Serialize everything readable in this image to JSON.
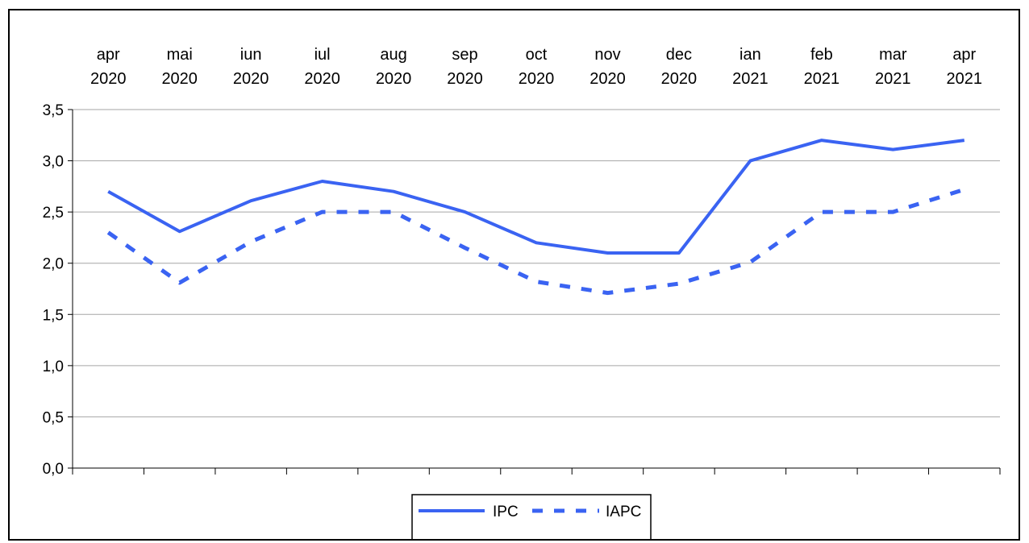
{
  "chart_data": {
    "type": "line",
    "categories": [
      [
        "apr",
        "2020"
      ],
      [
        "mai",
        "2020"
      ],
      [
        "iun",
        "2020"
      ],
      [
        "iul",
        "2020"
      ],
      [
        "aug",
        "2020"
      ],
      [
        "sep",
        "2020"
      ],
      [
        "oct",
        "2020"
      ],
      [
        "nov",
        "2020"
      ],
      [
        "dec",
        "2020"
      ],
      [
        "ian",
        "2021"
      ],
      [
        "feb",
        "2021"
      ],
      [
        "mar",
        "2021"
      ],
      [
        "apr",
        "2021"
      ]
    ],
    "series": [
      {
        "name": "IPC",
        "style": "solid",
        "color": "#3a63f2",
        "values": [
          2.7,
          2.31,
          2.61,
          2.8,
          2.7,
          2.5,
          2.2,
          2.1,
          2.1,
          3.0,
          3.2,
          3.11,
          3.2
        ]
      },
      {
        "name": "IAPC",
        "style": "dashed",
        "color": "#3a63f2",
        "values": [
          2.3,
          1.81,
          2.21,
          2.5,
          2.5,
          2.15,
          1.82,
          1.71,
          1.8,
          2.01,
          2.5,
          2.5,
          2.72
        ]
      }
    ],
    "y_ticks": [
      "0,0",
      "0,5",
      "1,0",
      "1,5",
      "2,0",
      "2,5",
      "3,0",
      "3,5"
    ],
    "ylim": [
      0,
      3.5
    ],
    "grid": "horizontal",
    "x_labels_position": "top",
    "legend_position": "bottom-center",
    "title": "",
    "xlabel": "",
    "ylabel": ""
  }
}
